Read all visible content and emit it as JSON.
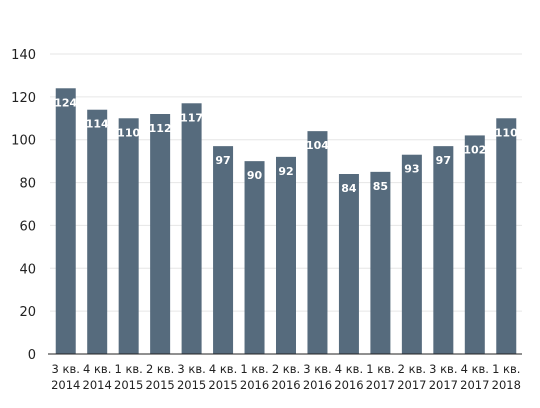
{
  "chart_data": {
    "type": "bar",
    "categories": [
      [
        "3 кв.",
        "2014"
      ],
      [
        "4 кв.",
        "2014"
      ],
      [
        "1 кв.",
        "2015"
      ],
      [
        "2 кв.",
        "2015"
      ],
      [
        "3 кв.",
        "2015"
      ],
      [
        "4 кв.",
        "2015"
      ],
      [
        "1 кв.",
        "2016"
      ],
      [
        "2 кв.",
        "2016"
      ],
      [
        "3 кв.",
        "2016"
      ],
      [
        "4 кв.",
        "2016"
      ],
      [
        "1 кв.",
        "2017"
      ],
      [
        "2 кв.",
        "2017"
      ],
      [
        "3 кв.",
        "2017"
      ],
      [
        "4 кв.",
        "2017"
      ],
      [
        "1 кв.",
        "2018"
      ]
    ],
    "values": [
      124,
      114,
      110,
      112,
      117,
      97,
      90,
      92,
      104,
      84,
      85,
      93,
      97,
      102,
      110
    ],
    "ylim": [
      0,
      140
    ],
    "yticks": [
      0,
      20,
      40,
      60,
      80,
      100,
      120,
      140
    ],
    "grid": true,
    "legend": "none",
    "colors": {
      "bar": "#566b7d",
      "label": "#ffffff"
    }
  }
}
